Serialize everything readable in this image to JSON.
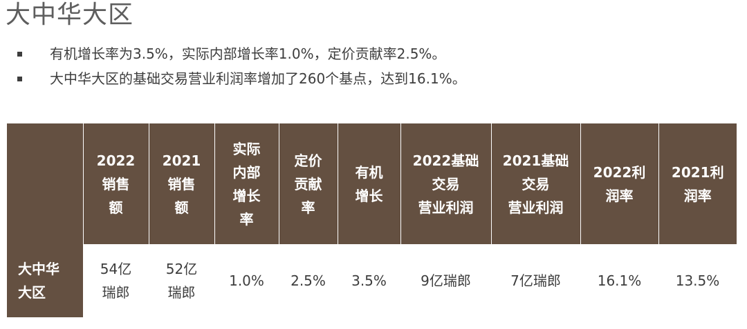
{
  "title": "大中华大区",
  "bullets": [
    "有机增长率为3.5%，实际内部增长率1.0%，定价贡献率2.5%。",
    "大中华大区的基础交易营业利润率增加了260个基点，达到16.1%。"
  ],
  "table": {
    "headers": [
      [],
      [
        "2022",
        "销售",
        "额"
      ],
      [
        "2021",
        "销售",
        "额"
      ],
      [
        "实际",
        "内部",
        "增长",
        "率"
      ],
      [
        "定价",
        "贡献",
        "率"
      ],
      [
        "有机",
        "增长"
      ],
      [
        "2022基础",
        "交易",
        "营业利润"
      ],
      [
        "2021基础",
        "交易",
        "营业利润"
      ],
      [
        "2022利",
        "润率"
      ],
      [
        "2021利",
        "润率"
      ]
    ],
    "row": {
      "label": [
        "大中华",
        "大区"
      ],
      "cells": [
        [
          "54亿",
          "瑞郎"
        ],
        [
          "52亿",
          "瑞郎"
        ],
        [
          "1.0%"
        ],
        [
          "2.5%"
        ],
        [
          "3.5%"
        ],
        [
          "9亿瑞郎"
        ],
        [
          "7亿瑞郎"
        ],
        [
          "16.1%"
        ],
        [
          "13.5%"
        ]
      ]
    }
  }
}
